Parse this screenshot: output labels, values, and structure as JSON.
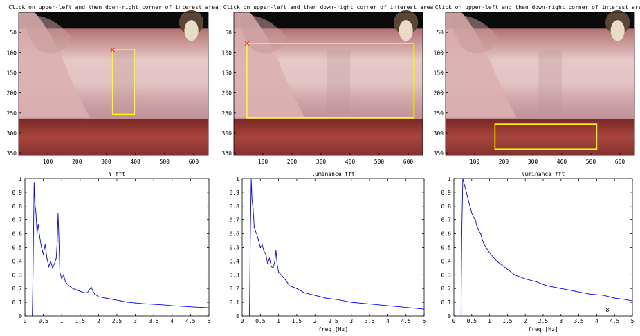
{
  "colors": {
    "line": "#0000ff",
    "roi": "#ffff00",
    "marker": "#ff3030",
    "axis": "#000000"
  },
  "image_panels": [
    {
      "title": "Click on upper-left and then down-right corner of interest area",
      "xticks": [
        100,
        200,
        300,
        400,
        500,
        600
      ],
      "yticks": [
        50,
        100,
        150,
        200,
        250,
        300,
        350
      ],
      "xlim": [
        0,
        650
      ],
      "ylim": [
        0,
        355
      ],
      "roi": {
        "x1": 322,
        "y1": 93,
        "x2": 397,
        "y2": 253
      }
    },
    {
      "title": "Click on upper-left and then down-right corner of interest area",
      "xticks": [
        100,
        200,
        300,
        400,
        500,
        600
      ],
      "yticks": [
        50,
        100,
        150,
        200,
        250,
        300,
        350
      ],
      "xlim": [
        0,
        650
      ],
      "ylim": [
        0,
        355
      ],
      "roi": {
        "x1": 45,
        "y1": 77,
        "x2": 620,
        "y2": 262
      }
    },
    {
      "title": "Click on upper-left and then down-right corner of interest area",
      "xticks": [
        100,
        200,
        300,
        400,
        500,
        600
      ],
      "yticks": [
        50,
        100,
        150,
        200,
        250,
        300,
        350
      ],
      "xlim": [
        0,
        650
      ],
      "ylim": [
        0,
        355
      ],
      "roi": {
        "x1": 170,
        "y1": 278,
        "x2": 520,
        "y2": 340
      }
    }
  ],
  "chart_data": [
    {
      "type": "line",
      "title": "Y fft",
      "xlabel": "",
      "ylabel": "",
      "xlim": [
        0,
        5
      ],
      "ylim": [
        0,
        1
      ],
      "xticks": [
        "0",
        "0.5",
        "1",
        "1.5",
        "2",
        "2.5",
        "3",
        "3.5",
        "4",
        "4.5",
        "5"
      ],
      "yticks": [
        "0",
        "0.1",
        "0.2",
        "0.3",
        "0.4",
        "0.5",
        "0.6",
        "0.7",
        "0.8",
        "0.9",
        "1"
      ],
      "series": [
        {
          "x": [
            0.2,
            0.22,
            0.25,
            0.27,
            0.3,
            0.33,
            0.36,
            0.4,
            0.45,
            0.5,
            0.55,
            0.6,
            0.65,
            0.7,
            0.75,
            0.8,
            0.85,
            0.88,
            0.9,
            0.92,
            0.95,
            1.0,
            1.05,
            1.1,
            1.2,
            1.3,
            1.4,
            1.5,
            1.6,
            1.7,
            1.8,
            1.85,
            1.9,
            2.0,
            2.2,
            2.4,
            2.6,
            2.8,
            3.0,
            3.2,
            3.5,
            3.8,
            4.0,
            4.3,
            4.6,
            5.0
          ],
          "y": [
            0,
            0.3,
            0.97,
            0.82,
            0.75,
            0.6,
            0.67,
            0.58,
            0.5,
            0.45,
            0.52,
            0.42,
            0.36,
            0.4,
            0.35,
            0.38,
            0.42,
            0.55,
            0.75,
            0.6,
            0.32,
            0.27,
            0.3,
            0.25,
            0.22,
            0.2,
            0.19,
            0.18,
            0.17,
            0.17,
            0.21,
            0.18,
            0.16,
            0.14,
            0.13,
            0.12,
            0.11,
            0.1,
            0.095,
            0.09,
            0.085,
            0.08,
            0.075,
            0.07,
            0.065,
            0.06
          ]
        }
      ]
    },
    {
      "type": "line",
      "title": "luminance fft",
      "xlabel": "freq [Hz]",
      "ylabel": "",
      "xlim": [
        0,
        5
      ],
      "ylim": [
        0,
        1
      ],
      "xticks": [
        "0",
        "0.5",
        "1",
        "1.5",
        "2",
        "2.5",
        "3",
        "3.5",
        "4",
        "4.5",
        "5"
      ],
      "yticks": [
        "0",
        "0.1",
        "0.2",
        "0.3",
        "0.4",
        "0.5",
        "0.6",
        "0.7",
        "0.8",
        "0.9",
        "1"
      ],
      "series": [
        {
          "x": [
            0.2,
            0.22,
            0.25,
            0.27,
            0.3,
            0.33,
            0.36,
            0.4,
            0.45,
            0.5,
            0.55,
            0.6,
            0.65,
            0.7,
            0.75,
            0.8,
            0.85,
            0.9,
            0.93,
            0.96,
            1.0,
            1.1,
            1.2,
            1.3,
            1.5,
            1.7,
            2.0,
            2.3,
            2.6,
            3.0,
            3.4,
            3.8,
            4.2,
            4.6,
            5.0
          ],
          "y": [
            0,
            0.5,
            1.0,
            0.85,
            0.78,
            0.65,
            0.62,
            0.6,
            0.55,
            0.5,
            0.52,
            0.47,
            0.45,
            0.38,
            0.42,
            0.36,
            0.35,
            0.4,
            0.48,
            0.38,
            0.32,
            0.29,
            0.26,
            0.22,
            0.2,
            0.17,
            0.15,
            0.13,
            0.12,
            0.1,
            0.09,
            0.08,
            0.07,
            0.06,
            0.05
          ]
        }
      ]
    },
    {
      "type": "line",
      "title": "luminance fft",
      "xlabel": "freq [Hz]",
      "ylabel": "",
      "xlim": [
        0,
        5
      ],
      "ylim": [
        0,
        1
      ],
      "xticks": [
        "0",
        "0.5",
        "1",
        "1.5",
        "2",
        "2.5",
        "3",
        "3.5",
        "4",
        "4.5",
        "5"
      ],
      "yticks": [
        "0",
        "0.1",
        "0.2",
        "0.3",
        "0.4",
        "0.5",
        "0.6",
        "0.7",
        "0.8",
        "0.9",
        "1"
      ],
      "annotation": "8",
      "series": [
        {
          "x": [
            0.2,
            0.22,
            0.25,
            0.3,
            0.35,
            0.4,
            0.45,
            0.5,
            0.55,
            0.6,
            0.65,
            0.7,
            0.75,
            0.8,
            0.85,
            0.9,
            0.95,
            1.0,
            1.1,
            1.2,
            1.3,
            1.5,
            1.7,
            2.0,
            2.3,
            2.6,
            3.0,
            3.4,
            3.8,
            4.2,
            4.5,
            4.8,
            5.0
          ],
          "y": [
            0,
            0.6,
            1.0,
            0.95,
            0.9,
            0.85,
            0.8,
            0.75,
            0.72,
            0.7,
            0.65,
            0.62,
            0.6,
            0.55,
            0.52,
            0.5,
            0.48,
            0.46,
            0.43,
            0.4,
            0.38,
            0.34,
            0.3,
            0.27,
            0.25,
            0.22,
            0.2,
            0.18,
            0.16,
            0.15,
            0.13,
            0.12,
            0.11
          ]
        }
      ]
    }
  ]
}
